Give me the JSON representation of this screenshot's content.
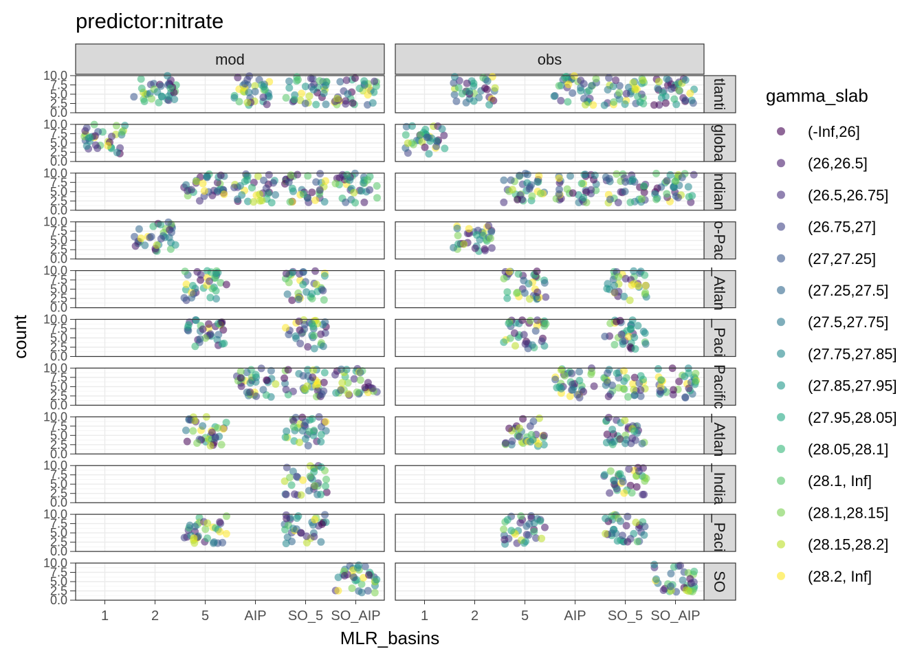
{
  "chart_data": {
    "type": "scatter",
    "title": "predictor:nitrate",
    "xlabel": "MLR_basins",
    "ylabel": "count",
    "x_categories": [
      "1",
      "2",
      "5",
      "AIP",
      "SO_5",
      "SO_AIP"
    ],
    "y_ticks": [
      "0.0",
      "2.5",
      "5.0",
      "7.5",
      "10.0"
    ],
    "ylim": [
      0,
      10
    ],
    "grid": true,
    "facet_cols": [
      "mod",
      "obs"
    ],
    "facet_rows": [
      "Atlantic",
      "global",
      "Indian",
      "Indo-Pacific",
      "N_Atlantic",
      "N_Pacific",
      "Pacific",
      "S_Atlantic",
      "S_Indian",
      "S_Pacific",
      "SO"
    ],
    "facet_row_labels_visible": [
      "tlanti",
      "globa",
      "ndian",
      "o-Pac",
      "_Atlan",
      "_Paci",
      "Pacific",
      "_Atlan",
      "_India",
      "_Paci",
      "SO"
    ],
    "jitter_clouds": [
      {
        "row": 0,
        "col": 0,
        "xcats": [
          2,
          4,
          5,
          6
        ]
      },
      {
        "row": 0,
        "col": 1,
        "xcats": [
          2,
          4,
          5,
          6
        ]
      },
      {
        "row": 1,
        "col": 0,
        "xcats": [
          1
        ]
      },
      {
        "row": 1,
        "col": 1,
        "xcats": [
          1
        ]
      },
      {
        "row": 2,
        "col": 0,
        "xcats": [
          3,
          4,
          5,
          6
        ]
      },
      {
        "row": 2,
        "col": 1,
        "xcats": [
          3,
          4,
          5,
          6
        ]
      },
      {
        "row": 3,
        "col": 0,
        "xcats": [
          2
        ]
      },
      {
        "row": 3,
        "col": 1,
        "xcats": [
          2
        ]
      },
      {
        "row": 4,
        "col": 0,
        "xcats": [
          3,
          5
        ]
      },
      {
        "row": 4,
        "col": 1,
        "xcats": [
          3,
          5
        ]
      },
      {
        "row": 5,
        "col": 0,
        "xcats": [
          3,
          5
        ]
      },
      {
        "row": 5,
        "col": 1,
        "xcats": [
          3,
          5
        ]
      },
      {
        "row": 6,
        "col": 0,
        "xcats": [
          4,
          5,
          6
        ]
      },
      {
        "row": 6,
        "col": 1,
        "xcats": [
          4,
          5,
          6
        ]
      },
      {
        "row": 7,
        "col": 0,
        "xcats": [
          3,
          5
        ]
      },
      {
        "row": 7,
        "col": 1,
        "xcats": [
          3,
          5
        ]
      },
      {
        "row": 8,
        "col": 0,
        "xcats": [
          5
        ]
      },
      {
        "row": 8,
        "col": 1,
        "xcats": [
          5
        ]
      },
      {
        "row": 9,
        "col": 0,
        "xcats": [
          3,
          5
        ]
      },
      {
        "row": 9,
        "col": 1,
        "xcats": [
          3,
          5
        ]
      },
      {
        "row": 10,
        "col": 0,
        "xcats": [
          6
        ]
      },
      {
        "row": 10,
        "col": 1,
        "xcats": [
          6
        ]
      }
    ],
    "legend": {
      "title": "gamma_slab",
      "position": "right",
      "items": [
        "(-Inf,26]",
        "(26,26.5]",
        "(26.5,26.75]",
        "(26.75,27]",
        "(27,27.25]",
        "(27.25,27.5]",
        "(27.5,27.75]",
        "(27.75,27.85]",
        "(27.85,27.95]",
        "(27.95,28.05]",
        "(28.05,28.1]",
        "(28.1, Inf]",
        "(28.1,28.15]",
        "(28.15,28.2]",
        "(28.2, Inf]"
      ],
      "colors": [
        "#440154",
        "#481A6C",
        "#472F7D",
        "#414487",
        "#39568C",
        "#31688E",
        "#2A788E",
        "#23888E",
        "#1F988B",
        "#22A884",
        "#35B779",
        "#54C568",
        "#7AD151",
        "#BBDF27",
        "#FDE725"
      ]
    }
  }
}
